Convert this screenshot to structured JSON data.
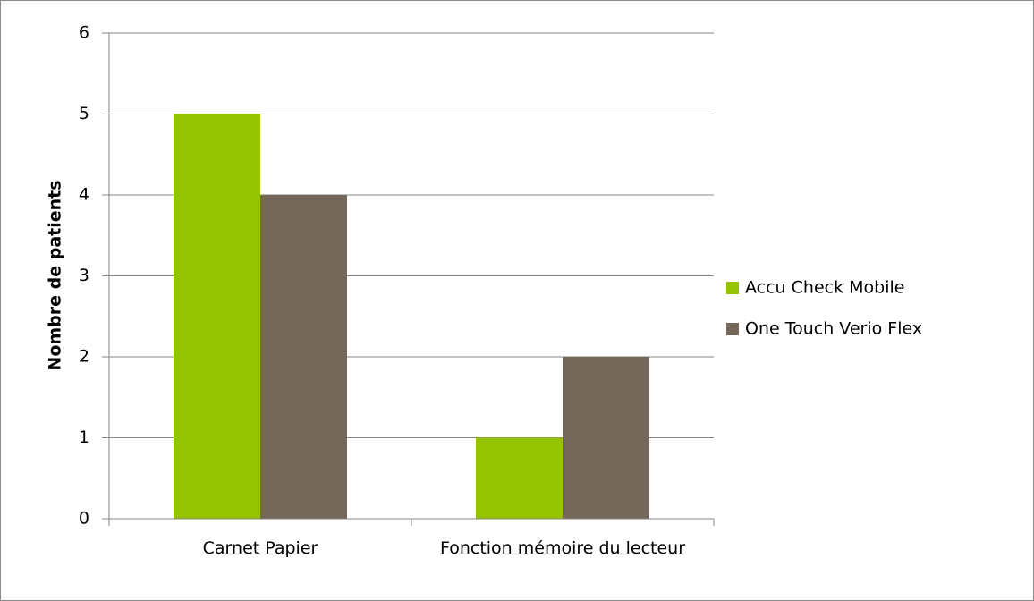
{
  "chart_data": {
    "type": "bar",
    "ylabel": "Nombre de patients",
    "categories": [
      "Carnet Papier",
      "Fonction mémoire du lecteur"
    ],
    "series": [
      {
        "name": "Accu Check Mobile",
        "color": "#96c300",
        "values": [
          5,
          1
        ]
      },
      {
        "name": "One Touch Verio Flex",
        "color": "#736859",
        "values": [
          4,
          2
        ]
      }
    ],
    "ylim": [
      0,
      6
    ],
    "yticks": [
      0,
      1,
      2,
      3,
      4,
      5,
      6
    ],
    "grid": true,
    "legend": "right"
  }
}
